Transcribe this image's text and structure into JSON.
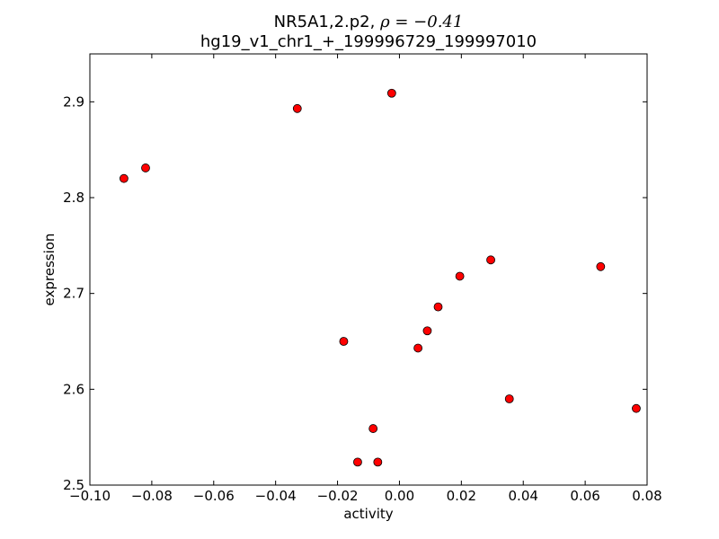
{
  "chart_data": {
    "type": "scatter",
    "title_line1_prefix": "NR5A1,2.p2, ",
    "title_line1_stat": "ρ = −0.41",
    "title_line2": "hg19_v1_chr1_+_199996729_199997010",
    "xlabel": "activity",
    "ylabel": "expression",
    "xlim": [
      -0.1,
      0.08
    ],
    "ylim": [
      2.5,
      2.95
    ],
    "xticks": [
      -0.1,
      -0.08,
      -0.06,
      -0.04,
      -0.02,
      0.0,
      0.02,
      0.04,
      0.06,
      0.08
    ],
    "xtick_labels": [
      "−0.10",
      "−0.08",
      "−0.06",
      "−0.04",
      "−0.02",
      "0.00",
      "0.02",
      "0.04",
      "0.06",
      "0.08"
    ],
    "yticks": [
      2.5,
      2.6,
      2.7,
      2.8,
      2.9
    ],
    "ytick_labels": [
      "2.5",
      "2.6",
      "2.7",
      "2.8",
      "2.9"
    ],
    "grid": false,
    "marker_color": "#ff0000",
    "marker_edge_color": "#000000",
    "points": [
      {
        "x": -0.089,
        "y": 2.82
      },
      {
        "x": -0.082,
        "y": 2.831
      },
      {
        "x": -0.033,
        "y": 2.893
      },
      {
        "x": -0.0025,
        "y": 2.909
      },
      {
        "x": -0.018,
        "y": 2.65
      },
      {
        "x": -0.0085,
        "y": 2.559
      },
      {
        "x": -0.0135,
        "y": 2.524
      },
      {
        "x": -0.007,
        "y": 2.524
      },
      {
        "x": 0.006,
        "y": 2.643
      },
      {
        "x": 0.009,
        "y": 2.661
      },
      {
        "x": 0.0125,
        "y": 2.686
      },
      {
        "x": 0.0195,
        "y": 2.718
      },
      {
        "x": 0.0295,
        "y": 2.735
      },
      {
        "x": 0.0355,
        "y": 2.59
      },
      {
        "x": 0.065,
        "y": 2.728
      },
      {
        "x": 0.0765,
        "y": 2.58
      }
    ]
  }
}
